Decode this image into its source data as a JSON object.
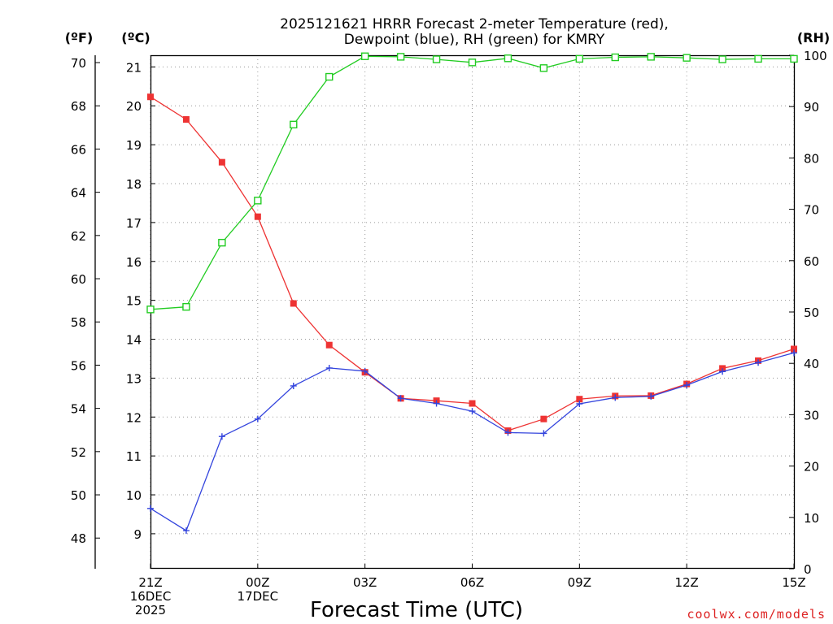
{
  "chart_data": {
    "type": "line",
    "title": [
      "2025121621 HRRR Forecast 2-meter Temperature (red),",
      "Dewpoint (blue), RH (green) for KMRY"
    ],
    "xlabel": "Forecast Time (UTC)",
    "credit": "coolwx.com/models",
    "units": {
      "fahrenheit": "(ºF)",
      "celsius": "(ºC)",
      "rh": "(RH)"
    },
    "x_ticks": [
      {
        "hour": 0,
        "lines": [
          "21Z",
          "16DEC",
          "2025"
        ]
      },
      {
        "hour": 3,
        "lines": [
          "00Z",
          "17DEC"
        ]
      },
      {
        "hour": 6,
        "lines": [
          "03Z"
        ]
      },
      {
        "hour": 9,
        "lines": [
          "06Z"
        ]
      },
      {
        "hour": 12,
        "lines": [
          "09Z"
        ]
      },
      {
        "hour": 15,
        "lines": [
          "12Z"
        ]
      },
      {
        "hour": 18,
        "lines": [
          "15Z"
        ]
      }
    ],
    "xlim": [
      0,
      18
    ],
    "ylim_celsius": [
      8.1,
      21.3
    ],
    "yticks_celsius": [
      9,
      10,
      11,
      12,
      13,
      14,
      15,
      16,
      17,
      18,
      19,
      20,
      21
    ],
    "yticks_fahrenheit": [
      48,
      50,
      52,
      54,
      56,
      58,
      60,
      62,
      64,
      66,
      68,
      70
    ],
    "ylim_rh": [
      0,
      100
    ],
    "yticks_rh": [
      0,
      10,
      20,
      30,
      40,
      50,
      60,
      70,
      80,
      90,
      100
    ],
    "grid": true,
    "hours": [
      0,
      1,
      2,
      3,
      4,
      5,
      6,
      7,
      8,
      9,
      10,
      11,
      12,
      13,
      14,
      15,
      16,
      17,
      18
    ],
    "series": [
      {
        "name": "Temperature",
        "color": "#ee3333",
        "axis": "celsius",
        "marker": "filled-square",
        "values": [
          20.23,
          19.65,
          18.55,
          17.15,
          14.92,
          13.85,
          13.15,
          12.48,
          12.42,
          12.35,
          11.65,
          11.95,
          12.46,
          12.54,
          12.55,
          12.85,
          13.25,
          13.45,
          13.75
        ]
      },
      {
        "name": "Dewpoint",
        "color": "#3344dd",
        "axis": "celsius",
        "marker": "plus",
        "values": [
          9.65,
          9.08,
          11.5,
          11.95,
          12.8,
          13.26,
          13.18,
          12.48,
          12.35,
          12.15,
          11.6,
          11.58,
          12.34,
          12.5,
          12.53,
          12.82,
          13.17,
          13.4,
          13.65
        ]
      },
      {
        "name": "RH",
        "color": "#22cc22",
        "axis": "rh",
        "marker": "open-square",
        "values": [
          50.5,
          51,
          63.5,
          71.7,
          86.5,
          95.8,
          99.8,
          99.7,
          99.2,
          98.6,
          99.4,
          97.5,
          99.3,
          99.6,
          99.7,
          99.5,
          99.2,
          99.3,
          99.3
        ]
      }
    ]
  }
}
